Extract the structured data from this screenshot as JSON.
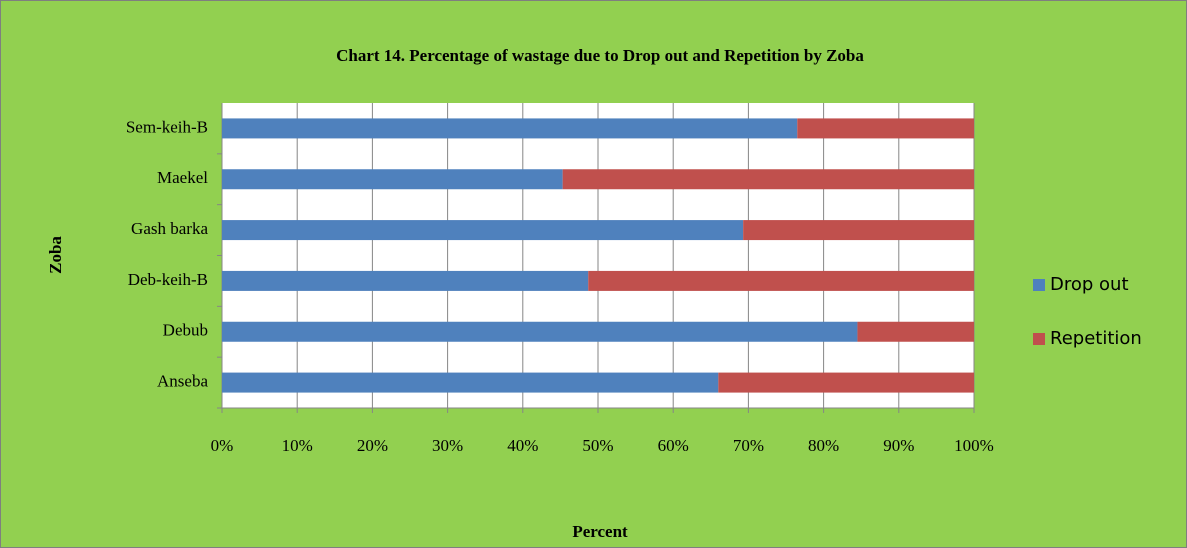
{
  "chart_data": {
    "type": "bar",
    "orientation": "horizontal",
    "stacked": true,
    "title": "Chart 14. Percentage of wastage due to Drop out and Repetition by Zoba",
    "x_label": "Percent",
    "y_label": "Zoba",
    "categories": [
      "Anseba",
      "Debub",
      "Deb-keih-B",
      "Gash barka",
      "Maekel",
      "Sem-keih-B"
    ],
    "series": [
      {
        "name": "Drop out",
        "color": "#4f81bd",
        "values": [
          66,
          84.5,
          48.7,
          69.3,
          45.3,
          76.5
        ]
      },
      {
        "name": "Repetition",
        "color": "#c0504d",
        "values": [
          34,
          15.5,
          51.3,
          30.7,
          54.7,
          23.5
        ]
      }
    ],
    "xlim": [
      0,
      100
    ],
    "xticks": [
      {
        "value": 0,
        "label": "0%"
      },
      {
        "value": 10,
        "label": "10%"
      },
      {
        "value": 20,
        "label": "20%"
      },
      {
        "value": 30,
        "label": "30%"
      },
      {
        "value": 40,
        "label": "40%"
      },
      {
        "value": 50,
        "label": "50%"
      },
      {
        "value": 60,
        "label": "60%"
      },
      {
        "value": 70,
        "label": "70%"
      },
      {
        "value": 80,
        "label": "80%"
      },
      {
        "value": 90,
        "label": "90%"
      },
      {
        "value": 100,
        "label": "100%"
      }
    ],
    "grid": true,
    "legend": "right"
  }
}
